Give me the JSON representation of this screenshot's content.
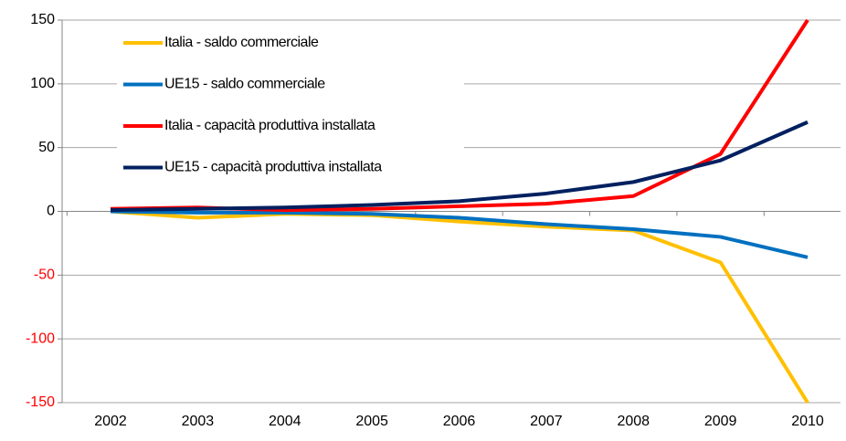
{
  "chart_data": {
    "type": "line",
    "categories": [
      "2002",
      "2003",
      "2004",
      "2005",
      "2006",
      "2007",
      "2008",
      "2009",
      "2010"
    ],
    "series": [
      {
        "name": "Italia - saldo commerciale",
        "color": "#ffc000",
        "values": [
          0,
          -5,
          -2,
          -3,
          -8,
          -12,
          -15,
          -40,
          -150
        ]
      },
      {
        "name": "UE15 - saldo commerciale",
        "color": "#0070c0",
        "values": [
          0,
          -1,
          -1,
          -2,
          -5,
          -10,
          -14,
          -20,
          -36
        ]
      },
      {
        "name": "Italia - capacità produttiva installata",
        "color": "#ff0000",
        "values": [
          2,
          3,
          1,
          2,
          4,
          6,
          12,
          45,
          150
        ]
      },
      {
        "name": "UE15 - capacità produttiva installata",
        "color": "#002060",
        "values": [
          1,
          2,
          3,
          5,
          8,
          14,
          23,
          40,
          70
        ]
      }
    ],
    "ylim": [
      -150,
      150
    ],
    "yticks": [
      -150,
      -100,
      -50,
      0,
      50,
      100,
      150
    ],
    "grid": true,
    "negative_tick_color": "#ff0000",
    "legend": "upper left"
  }
}
